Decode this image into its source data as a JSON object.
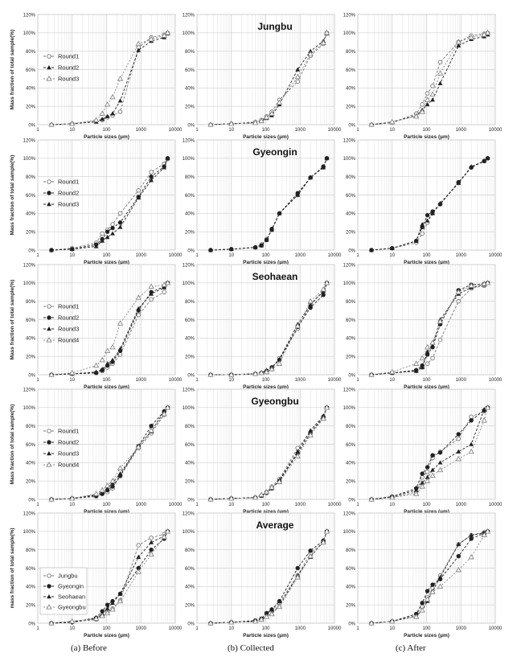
{
  "figure": {
    "row_titles": [
      "Jungbu",
      "Gyeongin",
      "Seohaean",
      "Gyeongbu",
      "Average"
    ],
    "captions": [
      "(a)  Before",
      "(b)  Collected",
      "(c)  After"
    ],
    "ylabel": "Mass fraction of total sample(%)",
    "ylabel_last_row": "mass fraction of total sample(%)",
    "xlabel": "Particle sizes (µm)"
  },
  "chart_data": {
    "type": "line",
    "x_scale": "log",
    "xlim": [
      1,
      10000
    ],
    "ylim": [
      0,
      120
    ],
    "x_ticks": [
      "1",
      "10",
      "100",
      "1000",
      "10000"
    ],
    "y_ticks": [
      "0%",
      "20%",
      "40%",
      "60%",
      "80%",
      "100%",
      "120%"
    ],
    "grid": true,
    "legend_position": "left",
    "markers": [
      "open-circle",
      "filled-triangle",
      "open-triangle",
      "filled-circle"
    ],
    "x": [
      2.5,
      10,
      50,
      75,
      106,
      150,
      250,
      850,
      2000,
      4750,
      6000
    ],
    "panels": [
      {
        "row": 0,
        "col": 0,
        "series": [
          {
            "name": "Round1",
            "marker": "open-circle",
            "values": [
              0,
              1,
              4,
              5,
              8,
              10,
              14,
              84,
              95,
              98,
              100
            ]
          },
          {
            "name": "Round2",
            "marker": "filled-triangle",
            "values": [
              0,
              1,
              3,
              6,
              9,
              12,
              26,
              81,
              91,
              95,
              99
            ]
          },
          {
            "name": "Round3",
            "marker": "open-triangle",
            "values": [
              0,
              1,
              5,
              12,
              22,
              30,
              50,
              88,
              93,
              97,
              100
            ]
          }
        ]
      },
      {
        "row": 0,
        "col": 1,
        "series": [
          {
            "name": "Round1",
            "marker": "open-circle",
            "values": [
              0,
              1,
              3,
              5,
              9,
              14,
              27,
              47,
              75,
              88,
              100
            ]
          },
          {
            "name": "Round2",
            "marker": "filled-triangle",
            "values": [
              0,
              1,
              2,
              4,
              7,
              10,
              22,
              60,
              80,
              91,
              99
            ]
          },
          {
            "name": "Round3",
            "marker": "open-triangle",
            "values": [
              0,
              1,
              2,
              4,
              8,
              12,
              24,
              52,
              77,
              89,
              100
            ]
          }
        ]
      },
      {
        "row": 0,
        "col": 2,
        "series": [
          {
            "name": "Round1",
            "marker": "open-circle",
            "values": [
              0,
              2,
              12,
              22,
              34,
              42,
              68,
              90,
              97,
              99,
              100
            ]
          },
          {
            "name": "Round2",
            "marker": "filled-triangle",
            "values": [
              0,
              3,
              10,
              16,
              22,
              27,
              45,
              86,
              93,
              96,
              98
            ]
          },
          {
            "name": "Round3",
            "marker": "open-triangle",
            "values": [
              0,
              3,
              9,
              14,
              27,
              33,
              56,
              90,
              95,
              98,
              100
            ]
          }
        ]
      },
      {
        "row": 1,
        "col": 0,
        "series": [
          {
            "name": "Round1",
            "marker": "open-circle",
            "values": [
              0,
              2,
              8,
              18,
              22,
              28,
              40,
              65,
              85,
              94,
              99
            ]
          },
          {
            "name": "Round2",
            "marker": "filled-circle",
            "values": [
              0,
              1,
              6,
              12,
              20,
              24,
              30,
              58,
              80,
              91,
              100
            ]
          },
          {
            "name": "Round3",
            "marker": "filled-triangle",
            "values": [
              0,
              1,
              4,
              10,
              14,
              18,
              25,
              57,
              76,
              90,
              100
            ]
          }
        ]
      },
      {
        "row": 1,
        "col": 1,
        "series": [
          {
            "name": "Round1",
            "marker": "open-circle",
            "values": [
              0,
              1,
              3,
              6,
              12,
              22,
              40,
              60,
              79,
              90,
              100
            ]
          },
          {
            "name": "Round2",
            "marker": "filled-circle",
            "values": [
              0,
              1,
              3,
              5,
              11,
              23,
              40,
              62,
              79,
              91,
              100
            ]
          },
          {
            "name": "Round3",
            "marker": "filled-triangle",
            "values": [
              0,
              1,
              3,
              5,
              11,
              22,
              40,
              60,
              79,
              90,
              100
            ]
          }
        ]
      },
      {
        "row": 1,
        "col": 2,
        "series": [
          {
            "name": "Round1",
            "marker": "open-circle",
            "values": [
              0,
              2,
              8,
              18,
              30,
              40,
              50,
              73,
              90,
              97,
              100
            ]
          },
          {
            "name": "Round2",
            "marker": "filled-circle",
            "values": [
              0,
              2,
              10,
              25,
              38,
              42,
              50,
              74,
              90,
              97,
              100
            ]
          },
          {
            "name": "Round3",
            "marker": "filled-triangle",
            "values": [
              0,
              2,
              10,
              28,
              32,
              40,
              51,
              73,
              91,
              97,
              100
            ]
          }
        ]
      },
      {
        "row": 2,
        "col": 0,
        "series": [
          {
            "name": "Round1",
            "marker": "open-circle",
            "values": [
              0,
              1,
              2,
              4,
              8,
              12,
              22,
              65,
              82,
              90,
              100
            ]
          },
          {
            "name": "Round2",
            "marker": "filled-circle",
            "values": [
              0,
              1,
              2,
              5,
              10,
              14,
              26,
              70,
              90,
              96,
              100
            ]
          },
          {
            "name": "Round3",
            "marker": "filled-triangle",
            "values": [
              0,
              1,
              3,
              6,
              12,
              16,
              28,
              72,
              88,
              95,
              100
            ]
          },
          {
            "name": "Round4",
            "marker": "open-triangle",
            "values": [
              0,
              2,
              10,
              16,
              26,
              30,
              56,
              84,
              96,
              98,
              100
            ]
          }
        ]
      },
      {
        "row": 2,
        "col": 1,
        "series": [
          {
            "name": "Round1",
            "marker": "open-circle",
            "values": [
              0,
              0,
              1,
              2,
              3,
              6,
              18,
              50,
              77,
              91,
              100
            ]
          },
          {
            "name": "Round2",
            "marker": "filled-circle",
            "values": [
              0,
              0,
              1,
              2,
              4,
              8,
              16,
              52,
              73,
              87,
              100
            ]
          },
          {
            "name": "Round3",
            "marker": "filled-triangle",
            "values": [
              0,
              0,
              1,
              2,
              5,
              8,
              17,
              55,
              76,
              91,
              100
            ]
          },
          {
            "name": "Round4",
            "marker": "open-triangle",
            "values": [
              0,
              0,
              1,
              2,
              3,
              6,
              12,
              53,
              80,
              93,
              100
            ]
          }
        ]
      },
      {
        "row": 2,
        "col": 2,
        "series": [
          {
            "name": "Round1",
            "marker": "open-circle",
            "values": [
              0,
              2,
              4,
              8,
              12,
              18,
              38,
              80,
              94,
              97,
              100
            ]
          },
          {
            "name": "Round2",
            "marker": "filled-circle",
            "values": [
              0,
              2,
              5,
              10,
              22,
              30,
              55,
              92,
              98,
              99,
              100
            ]
          },
          {
            "name": "Round3",
            "marker": "filled-triangle",
            "values": [
              0,
              2,
              4,
              8,
              25,
              32,
              60,
              88,
              95,
              98,
              100
            ]
          },
          {
            "name": "Round4",
            "marker": "open-triangle",
            "values": [
              0,
              3,
              12,
              18,
              30,
              35,
              58,
              90,
              97,
              99,
              100
            ]
          }
        ]
      },
      {
        "row": 3,
        "col": 0,
        "series": [
          {
            "name": "Round1",
            "marker": "open-circle",
            "values": [
              0,
              1,
              3,
              6,
              8,
              12,
              25,
              56,
              72,
              92,
              100
            ]
          },
          {
            "name": "Round2",
            "marker": "filled-circle",
            "values": [
              0,
              1,
              4,
              6,
              10,
              14,
              26,
              58,
              80,
              96,
              100
            ]
          },
          {
            "name": "Round3",
            "marker": "filled-triangle",
            "values": [
              0,
              1,
              5,
              8,
              12,
              18,
              28,
              58,
              74,
              96,
              100
            ]
          },
          {
            "name": "Round4",
            "marker": "open-triangle",
            "values": [
              0,
              1,
              6,
              10,
              15,
              20,
              34,
              57,
              75,
              93,
              100
            ]
          }
        ]
      },
      {
        "row": 3,
        "col": 1,
        "series": [
          {
            "name": "Round1",
            "marker": "open-circle",
            "values": [
              0,
              1,
              2,
              4,
              8,
              14,
              22,
              56,
              73,
              88,
              100
            ]
          },
          {
            "name": "Round2",
            "marker": "filled-circle",
            "values": [
              0,
              1,
              2,
              4,
              7,
              12,
              20,
              50,
              72,
              90,
              100
            ]
          },
          {
            "name": "Round3",
            "marker": "filled-triangle",
            "values": [
              0,
              1,
              2,
              4,
              8,
              12,
              21,
              52,
              75,
              91,
              100
            ]
          },
          {
            "name": "Round4",
            "marker": "open-triangle",
            "values": [
              0,
              1,
              2,
              5,
              8,
              13,
              19,
              47,
              70,
              88,
              100
            ]
          }
        ]
      },
      {
        "row": 3,
        "col": 2,
        "series": [
          {
            "name": "Round1",
            "marker": "open-circle",
            "values": [
              0,
              2,
              8,
              24,
              30,
              45,
              52,
              66,
              90,
              96,
              100
            ]
          },
          {
            "name": "Round2",
            "marker": "filled-circle",
            "values": [
              0,
              3,
              12,
              28,
              35,
              48,
              51,
              71,
              86,
              97,
              100
            ]
          },
          {
            "name": "Round3",
            "marker": "filled-triangle",
            "values": [
              0,
              3,
              10,
              18,
              24,
              32,
              40,
              52,
              60,
              98,
              100
            ]
          },
          {
            "name": "Round4",
            "marker": "open-triangle",
            "values": [
              0,
              2,
              6,
              14,
              20,
              26,
              32,
              44,
              52,
              86,
              100
            ]
          }
        ]
      },
      {
        "row": 4,
        "col": 0,
        "series": [
          {
            "name": "Jungbu",
            "marker": "open-circle",
            "values": [
              0,
              1,
              4,
              8,
              12,
              16,
              25,
              85,
              93,
              97,
              100
            ]
          },
          {
            "name": "Gyeongin",
            "marker": "filled-circle",
            "values": [
              0,
              1,
              6,
              13,
              20,
              24,
              32,
              60,
              80,
              92,
              100
            ]
          },
          {
            "name": "Seohaean",
            "marker": "filled-triangle",
            "values": [
              0,
              2,
              5,
              10,
              16,
              22,
              32,
              72,
              88,
              95,
              100
            ]
          },
          {
            "name": "Gyeongbu",
            "marker": "open-triangle",
            "values": [
              0,
              2,
              5,
              8,
              11,
              15,
              24,
              56,
              75,
              94,
              100
            ]
          }
        ]
      },
      {
        "row": 4,
        "col": 1,
        "series": [
          {
            "name": "Jungbu",
            "marker": "open-circle",
            "values": [
              0,
              1,
              2,
              4,
              10,
              14,
              22,
              52,
              76,
              88,
              100
            ]
          },
          {
            "name": "Gyeongin",
            "marker": "filled-circle",
            "values": [
              0,
              1,
              3,
              5,
              11,
              15,
              24,
              60,
              79,
              90,
              100
            ]
          },
          {
            "name": "Seohaean",
            "marker": "filled-triangle",
            "values": [
              0,
              1,
              2,
              4,
              7,
              11,
              19,
              52,
              72,
              89,
              100
            ]
          },
          {
            "name": "Gyeongbu",
            "marker": "open-triangle",
            "values": [
              0,
              1,
              2,
              4,
              7,
              10,
              18,
              50,
              73,
              88,
              100
            ]
          }
        ]
      },
      {
        "row": 4,
        "col": 2,
        "series": [
          {
            "name": "Jungbu",
            "marker": "open-circle",
            "values": [
              0,
              2,
              10,
              18,
              28,
              38,
              52,
              86,
              96,
              99,
              100
            ]
          },
          {
            "name": "Gyeongin",
            "marker": "filled-circle",
            "values": [
              0,
              2,
              10,
              22,
              35,
              42,
              48,
              73,
              92,
              98,
              100
            ]
          },
          {
            "name": "Seohaean",
            "marker": "filled-triangle",
            "values": [
              0,
              2,
              8,
              14,
              24,
              35,
              50,
              86,
              96,
              98,
              100
            ]
          },
          {
            "name": "Gyeongbu",
            "marker": "open-triangle",
            "values": [
              0,
              2,
              7,
              14,
              26,
              34,
              40,
              58,
              72,
              96,
              100
            ]
          }
        ]
      }
    ]
  }
}
